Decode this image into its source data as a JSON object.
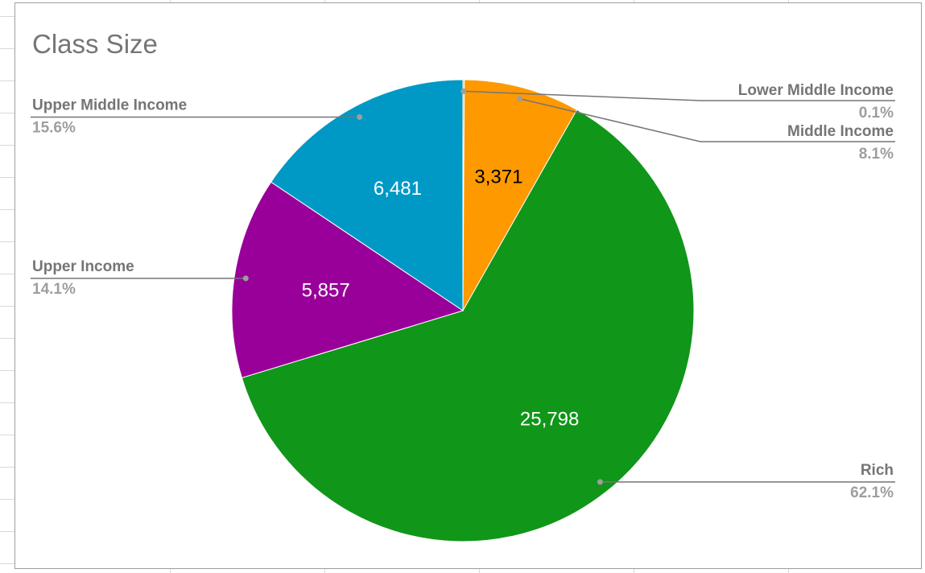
{
  "chart_data": {
    "type": "pie",
    "title": "Class Size",
    "slices": [
      {
        "name": "Lower Middle Income",
        "value": 41,
        "value_label": "",
        "percent_label": "0.1%",
        "color": "#ff9900",
        "label_color": "#000000"
      },
      {
        "name": "Middle Income",
        "value": 3371,
        "value_label": "3,371",
        "percent_label": "8.1%",
        "color": "#ff9900",
        "label_color": "#000000"
      },
      {
        "name": "Rich",
        "value": 25798,
        "value_label": "25,798",
        "percent_label": "62.1%",
        "color": "#109618",
        "label_color": "#ffffff"
      },
      {
        "name": "Upper Income",
        "value": 5857,
        "value_label": "5,857",
        "percent_label": "14.1%",
        "color": "#990099",
        "label_color": "#ffffff"
      },
      {
        "name": "Upper Middle Income",
        "value": 6481,
        "value_label": "6,481",
        "percent_label": "15.6%",
        "color": "#0099c6",
        "label_color": "#ffffff"
      }
    ]
  }
}
